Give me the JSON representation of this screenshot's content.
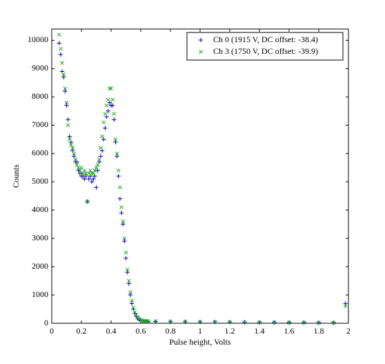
{
  "chart_data": {
    "type": "scatter",
    "x_label": "Pulse height, Volts",
    "y_label": "Counts",
    "x": [
      0.05,
      0.06,
      0.07,
      0.08,
      0.09,
      0.1,
      0.11,
      0.12,
      0.13,
      0.14,
      0.15,
      0.16,
      0.17,
      0.18,
      0.19,
      0.2,
      0.21,
      0.22,
      0.23,
      0.24,
      0.25,
      0.26,
      0.27,
      0.28,
      0.29,
      0.3,
      0.31,
      0.32,
      0.33,
      0.34,
      0.35,
      0.36,
      0.37,
      0.38,
      0.39,
      0.4,
      0.41,
      0.42,
      0.43,
      0.44,
      0.45,
      0.46,
      0.47,
      0.48,
      0.49,
      0.5,
      0.51,
      0.52,
      0.53,
      0.54,
      0.55,
      0.56,
      0.57,
      0.58,
      0.59,
      0.6,
      0.61,
      0.62,
      0.63,
      0.64,
      0.65,
      0.7,
      0.8,
      0.9,
      1.0,
      1.1,
      1.2,
      1.3,
      1.4,
      1.5,
      1.6,
      1.7,
      1.8,
      1.9,
      1.98
    ],
    "series": [
      {
        "name": "Ch 0 (1915 V, DC offset: -38.4)",
        "color": "#0000aa",
        "marker": "+",
        "values": [
          9900,
          9500,
          8900,
          8700,
          8200,
          7700,
          7200,
          6600,
          6400,
          6100,
          5900,
          5700,
          5700,
          5400,
          5300,
          5200,
          5200,
          5100,
          5200,
          4300,
          5100,
          5200,
          5000,
          5100,
          5200,
          4800,
          5400,
          5700,
          5900,
          6100,
          6500,
          6900,
          7300,
          7500,
          7800,
          7700,
          7700,
          7200,
          6400,
          5900,
          5200,
          4400,
          3900,
          3500,
          2900,
          2300,
          1800,
          1400,
          1000,
          700,
          500,
          350,
          250,
          180,
          130,
          100,
          90,
          80,
          75,
          70,
          65,
          60,
          55,
          50,
          45,
          45,
          40,
          35,
          30,
          30,
          25,
          25,
          20,
          20,
          700
        ]
      },
      {
        "name": "Ch 3 (1750 V, DC offset: -39.9)",
        "color": "#22aa22",
        "marker": "x",
        "values": [
          10200,
          9700,
          9200,
          8800,
          8300,
          7800,
          7000,
          6500,
          6300,
          6200,
          6000,
          5800,
          5600,
          5500,
          5400,
          5500,
          5300,
          5400,
          5300,
          4300,
          5300,
          5400,
          5300,
          5300,
          5400,
          5500,
          5600,
          5800,
          6200,
          6600,
          7100,
          7400,
          7700,
          7900,
          8300,
          8300,
          7900,
          7400,
          6500,
          6000,
          5400,
          4800,
          4100,
          3600,
          3000,
          2500,
          1900,
          1500,
          1100,
          800,
          550,
          400,
          280,
          200,
          150,
          110,
          95,
          85,
          80,
          75,
          70,
          65,
          60,
          55,
          50,
          45,
          40,
          35,
          30,
          30,
          25,
          25,
          20,
          20,
          600
        ]
      }
    ],
    "xlim": [
      0,
      2
    ],
    "xticks": [
      0,
      0.2,
      0.4,
      0.6,
      0.8,
      1,
      1.2,
      1.4,
      1.6,
      1.8,
      2
    ],
    "ylim": [
      0,
      10400
    ],
    "yticks": [
      0,
      1000,
      2000,
      3000,
      4000,
      5000,
      6000,
      7000,
      8000,
      9000,
      10000
    ],
    "legend": "upper right",
    "grid": false
  }
}
